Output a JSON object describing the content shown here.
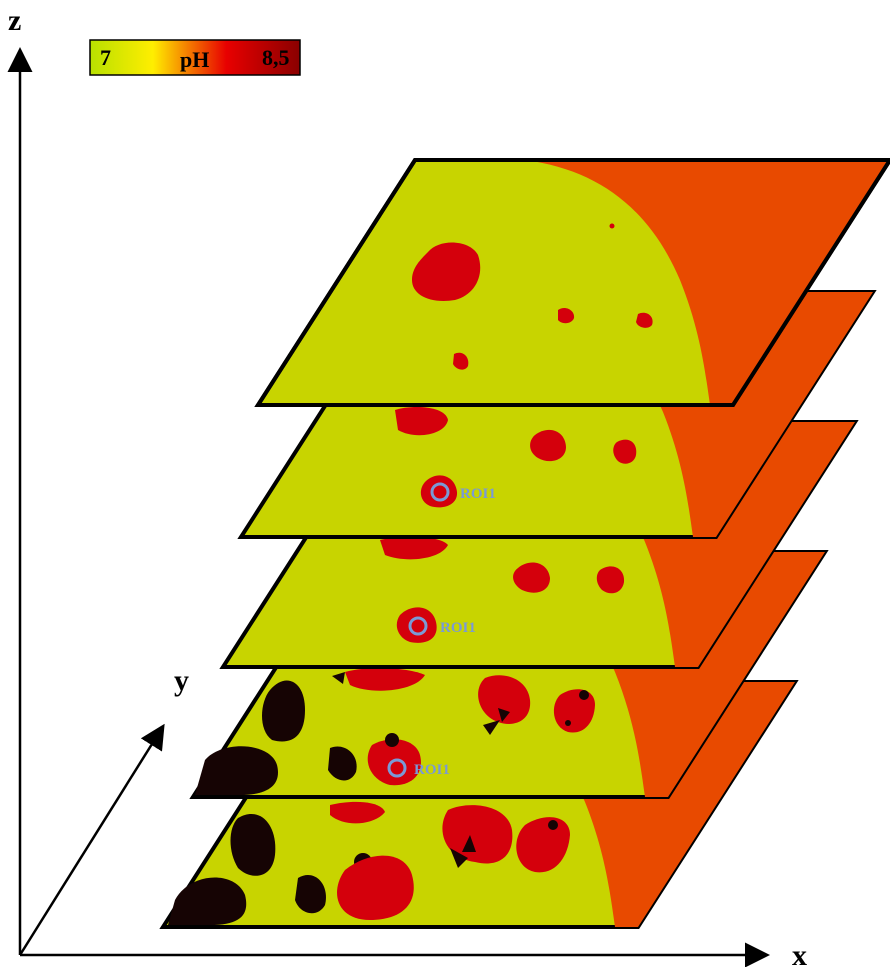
{
  "axes": {
    "z": "z",
    "y": "y",
    "x": "x"
  },
  "colorbar": {
    "min": "7",
    "title": "pH",
    "max": "8,5"
  },
  "roi_labels": [
    "ROI1",
    "ROI1",
    "ROI1"
  ]
}
